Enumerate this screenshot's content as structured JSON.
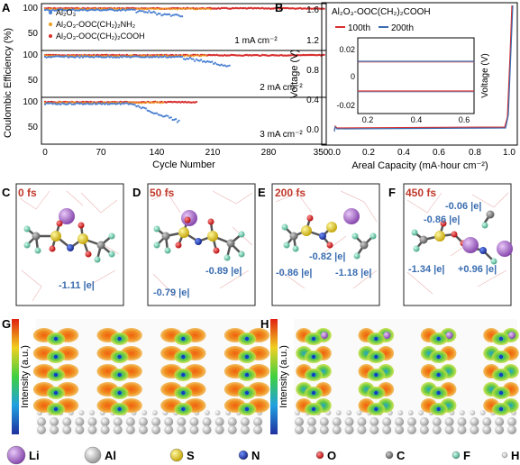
{
  "panels": {
    "A": {
      "letter": "A",
      "ylabel": "Coulombic Efficiency (%)",
      "xlabel": "Cycle Number",
      "xticks": [
        "0",
        "70",
        "140",
        "210",
        "280",
        "350"
      ],
      "yticks_top": [
        "50",
        "100"
      ],
      "yticks_mid": [
        "50",
        "100"
      ],
      "yticks_bot": [
        "50",
        "100"
      ],
      "legend": [
        "Al₂O₃",
        "Al₂O₃-OOC(CH₂)₂NH₂",
        "Al₂O₃-OOC(CH₂)₂COOH"
      ],
      "sub_labels": [
        "1 mA cm⁻²",
        "2 mA cm⁻²",
        "3 mA cm⁻²"
      ],
      "colors": {
        "al2o3": "#4a7fd0",
        "nh2": "#f0a020",
        "cooh": "#d83030"
      }
    },
    "B": {
      "letter": "B",
      "title": "Al₂O₃-OOC(CH₂)₂COOH",
      "ylabel": "Voltage  (V)",
      "xlabel": "Areal Capacity (mA·hour cm⁻²)",
      "xticks": [
        "0.0",
        "0.2",
        "0.4",
        "0.6",
        "0.8",
        "1.0"
      ],
      "yticks": [
        "0.0",
        "0.4",
        "0.8",
        "1.2",
        "1.6"
      ],
      "legend": [
        "100th",
        "200th"
      ],
      "inset": {
        "xticks": [
          "0.2",
          "0.4",
          "0.6"
        ],
        "yticks": [
          "0.02",
          "0",
          "-0.02"
        ],
        "ylabel": "Voltage (V)"
      }
    },
    "C": {
      "letter": "C",
      "title": "0 fs",
      "charges": [
        "-1.11 |e|"
      ]
    },
    "D": {
      "letter": "D",
      "title": "50 fs",
      "charges": [
        "-0.79 |e|",
        "-0.89 |e|"
      ]
    },
    "E": {
      "letter": "E",
      "title": "200 fs",
      "charges": [
        "-0.82 |e|",
        "-0.86 |e|",
        "-1.18 |e|"
      ]
    },
    "F": {
      "letter": "F",
      "title": "450 fs",
      "charges": [
        "-0.06 |e|",
        "-0.86 |e|",
        "-1.34 |e|",
        "+0.96 |e|"
      ]
    },
    "G": {
      "letter": "G",
      "ylabel": "Intensity (a.u.)"
    },
    "H": {
      "letter": "H",
      "ylabel": "Intensity (a.u.)"
    }
  },
  "atom_legend": [
    {
      "label": "Li",
      "color": "#a060c0"
    },
    {
      "label": "Al",
      "color": "#b8b8b8"
    },
    {
      "label": "S",
      "color": "#d8c020"
    },
    {
      "label": "N",
      "color": "#2040b0"
    },
    {
      "label": "O",
      "color": "#d02020"
    },
    {
      "label": "C",
      "color": "#808080"
    },
    {
      "label": "F",
      "color": "#70c8a0"
    },
    {
      "label": "H",
      "color": "#e8e8e8"
    }
  ],
  "colors": {
    "label_red": "#c0392b",
    "charge_blue": "#3a6db0"
  }
}
